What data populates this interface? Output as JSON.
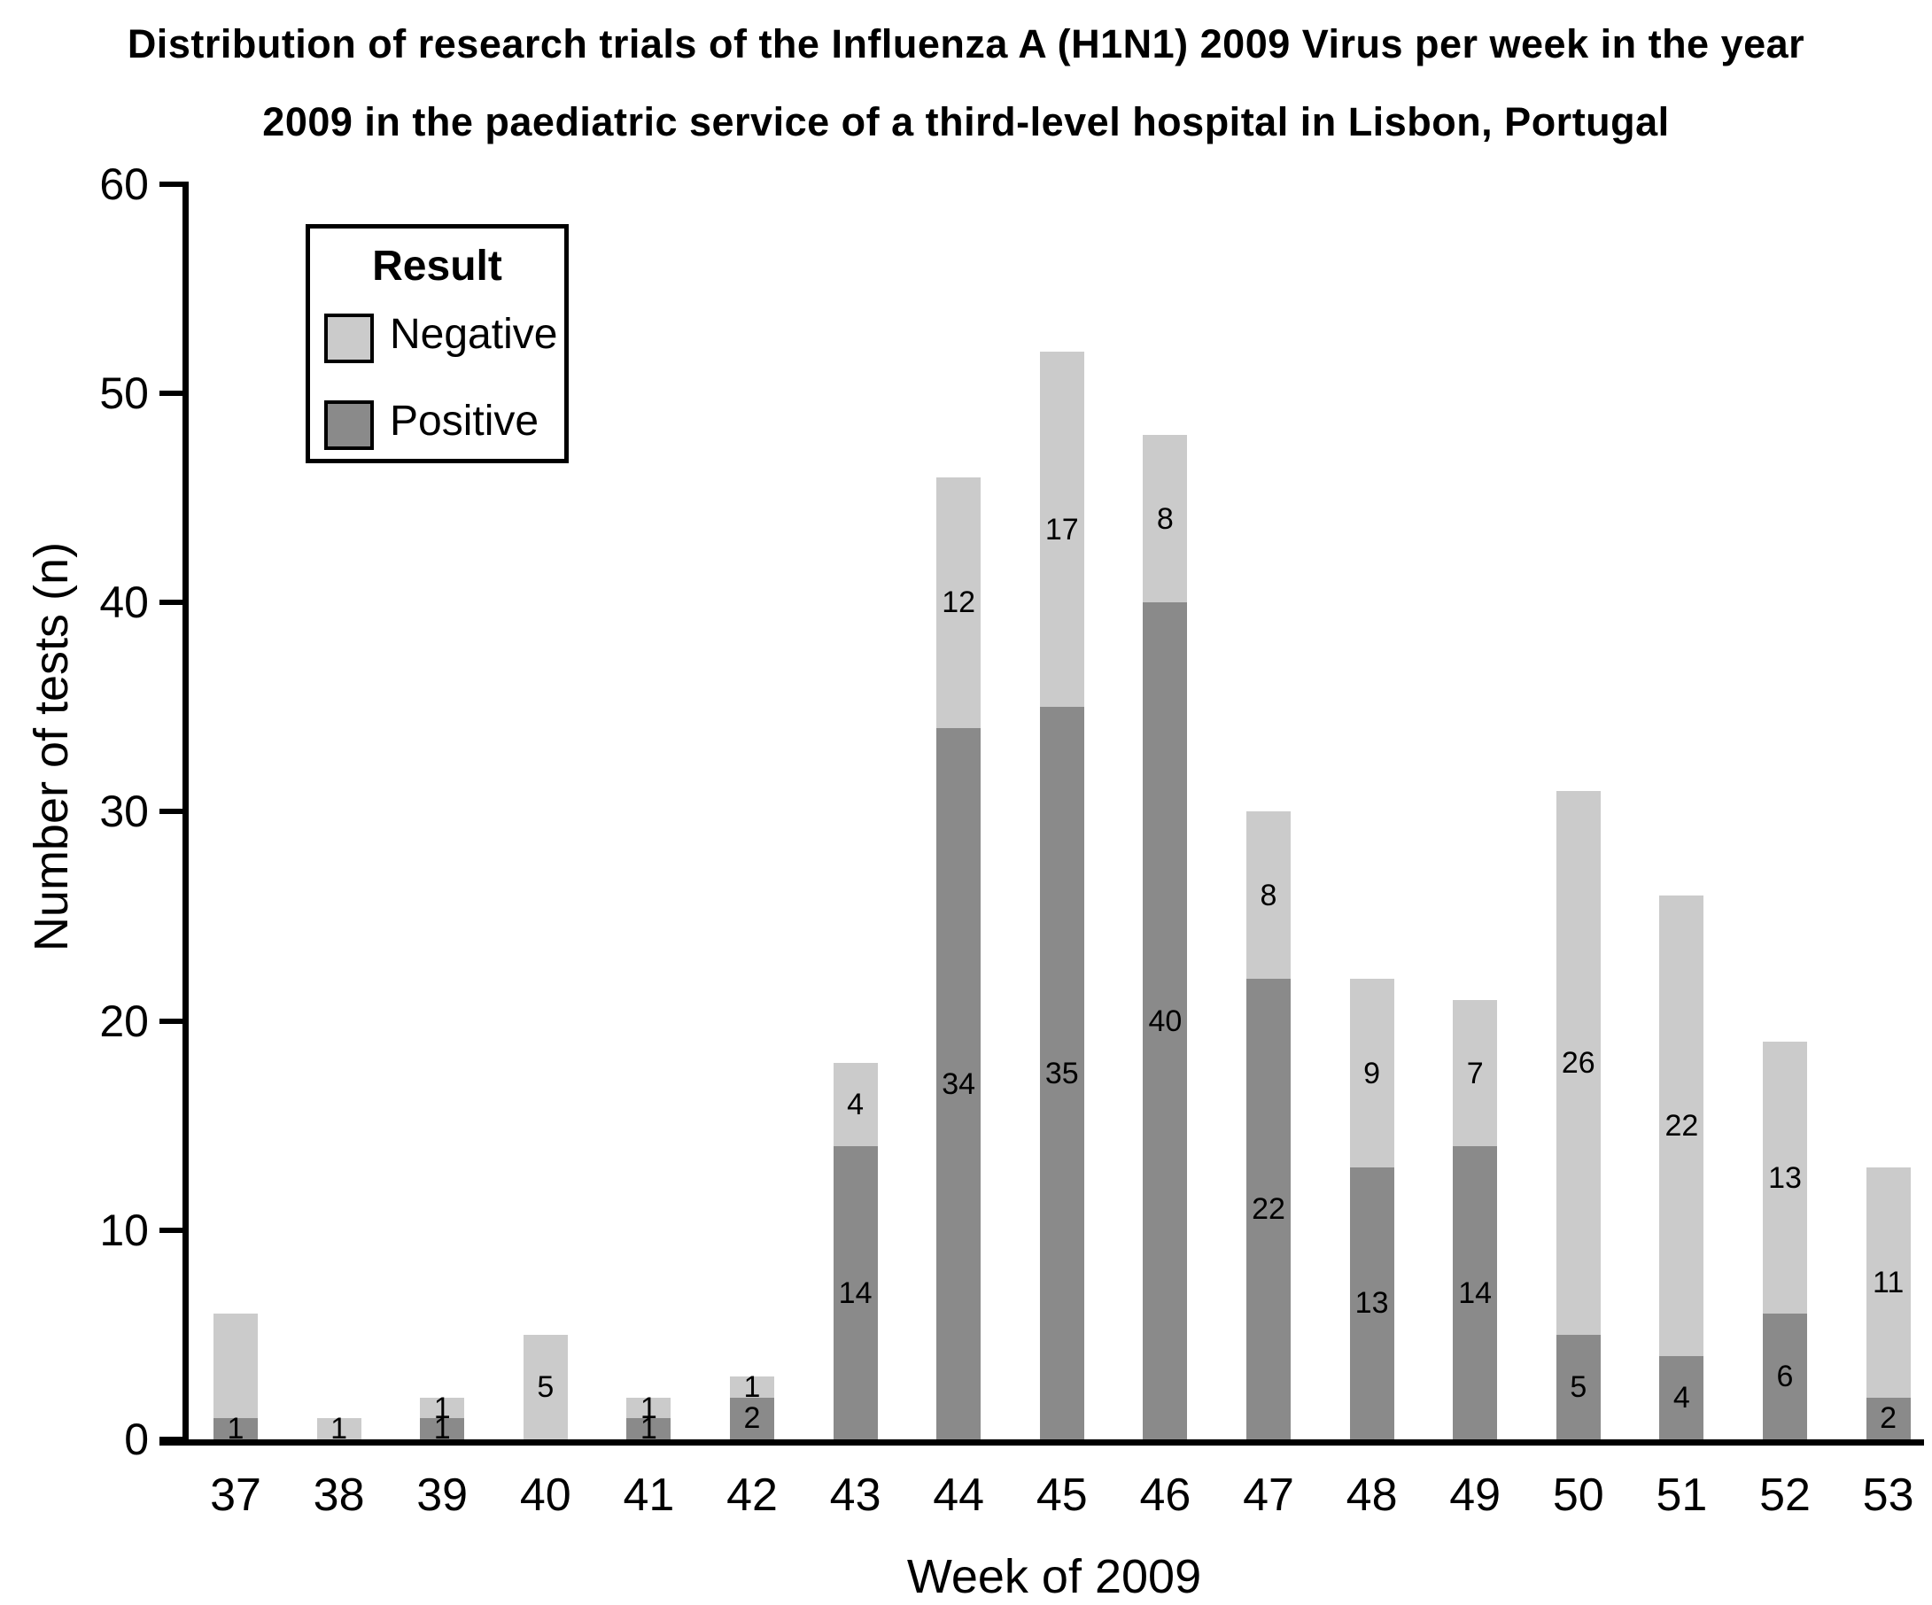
{
  "figure": {
    "title_line1": "Distribution of research trials of the Influenza A (H1N1) 2009 Virus per week in the year",
    "title_line2": "2009 in the paediatric service of a third-level hospital in Lisbon, Portugal"
  },
  "chart_data": {
    "type": "bar",
    "stacked": true,
    "title": "Distribution of research trials of the Influenza A (H1N1) 2009 Virus per week in the year 2009 in the paediatric service of a third-level hospital in Lisbon, Portugal",
    "xlabel": "Week of 2009",
    "ylabel": "Number of tests (n)",
    "categories": [
      "37",
      "38",
      "39",
      "40",
      "41",
      "42",
      "43",
      "44",
      "45",
      "46",
      "47",
      "48",
      "49",
      "50",
      "51",
      "52",
      "53"
    ],
    "series": [
      {
        "name": "Positive",
        "color": "#8a8a8a",
        "values": [
          1,
          0,
          1,
          0,
          1,
          2,
          14,
          34,
          35,
          40,
          22,
          13,
          14,
          5,
          4,
          6,
          2
        ],
        "labels": [
          "1",
          "",
          "1",
          "",
          "1",
          "2",
          "14",
          "34",
          "35",
          "40",
          "22",
          "13",
          "14",
          "5",
          "4",
          "6",
          "2"
        ]
      },
      {
        "name": "Negative",
        "color": "#cbcbcb",
        "values": [
          5,
          1,
          1,
          5,
          1,
          1,
          4,
          12,
          17,
          8,
          8,
          9,
          7,
          26,
          22,
          13,
          11
        ],
        "labels": [
          "",
          "1",
          "1",
          "5",
          "1",
          "1",
          "4",
          "12",
          "17",
          "8",
          "8",
          "9",
          "7",
          "26",
          "22",
          "13",
          "11"
        ]
      }
    ],
    "totals": [
      6,
      1,
      2,
      5,
      2,
      3,
      18,
      46,
      52,
      48,
      30,
      22,
      21,
      31,
      26,
      19,
      13
    ],
    "ylim": [
      0,
      60
    ],
    "yticks": [
      0,
      10,
      20,
      30,
      40,
      50,
      60
    ],
    "grid": false,
    "label_color": "#000000",
    "axis_color": "#000000",
    "legend": {
      "title": "Result",
      "position": "top-left",
      "items": [
        {
          "label": "Negative",
          "color": "#cbcbcb"
        },
        {
          "label": "Positive",
          "color": "#8a8a8a"
        }
      ]
    }
  }
}
